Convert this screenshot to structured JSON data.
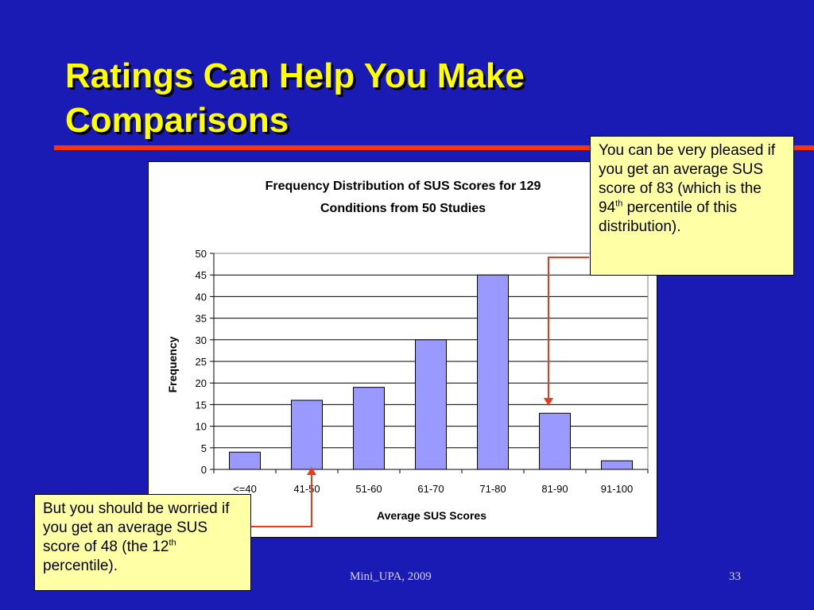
{
  "slide": {
    "title": "Ratings Can Help You Make Comparisons",
    "footer_text": "Mini_UPA, 2009",
    "page_number": "33"
  },
  "callouts": {
    "top": {
      "text_before": "You can be very pleased if you get an average SUS score of 83 (which is the 94",
      "superscript": "th",
      "text_after": " percentile of this distribution)."
    },
    "bottom": {
      "text_before": "But you should be worried if you get an average SUS score of 48 (the 12",
      "superscript": "th",
      "text_after": " percentile)."
    }
  },
  "colors": {
    "background": "#1a1ab4",
    "title": "#ffff00",
    "rule": "#ff3300",
    "bar_fill": "#9999ff",
    "callout_fill": "#ffffa6",
    "leader": "#e83a1c"
  },
  "chart_data": {
    "type": "bar",
    "title_lines": [
      "Frequency Distribution of SUS Scores for 129",
      "Conditions from 50 Studies"
    ],
    "categories": [
      "<=40",
      "41-50",
      "51-60",
      "61-70",
      "71-80",
      "81-90",
      "91-100"
    ],
    "values": [
      4,
      16,
      19,
      30,
      45,
      13,
      2
    ],
    "xlabel": "Average SUS Scores",
    "ylabel": "Frequency",
    "ylim": [
      0,
      50
    ],
    "yticks": [
      0,
      5,
      10,
      15,
      20,
      25,
      30,
      35,
      40,
      45,
      50
    ],
    "grid": true,
    "legend": false
  }
}
